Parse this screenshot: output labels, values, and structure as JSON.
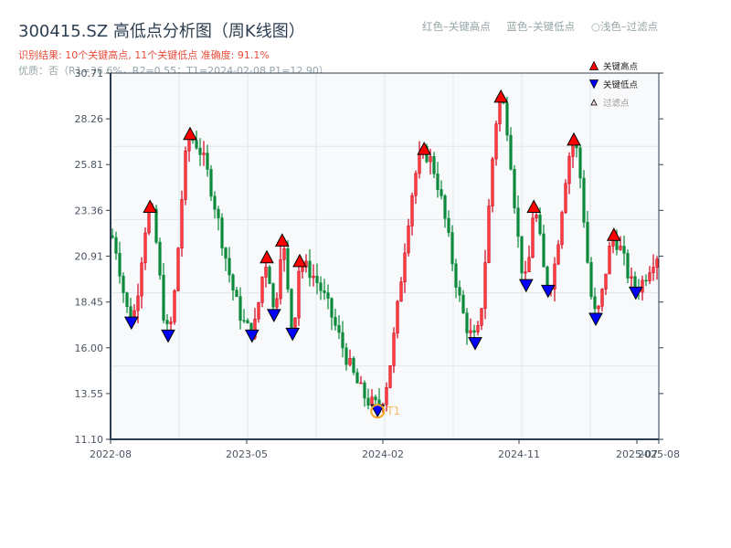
{
  "header": {
    "title": "300415.SZ 高低点分析图（周K线图）",
    "result_line": "识别结果: 10个关键高点, 11个关键低点   准确度: 91.1%",
    "quality_line": "优质：否（R1=36.6%，R2=0.55；T1=2024-02-08 P1=12.90）"
  },
  "top_legend": {
    "red_label": "红色–关键高点",
    "blue_label": "蓝色–关键低点",
    "filtered_label": "○浅色–过滤点"
  },
  "colors": {
    "up": "#d0021b",
    "down": "#0a8a3a",
    "high_marker": "#ff0000",
    "low_marker": "#0000ff",
    "t1_ring": "#f5a623",
    "axis": "#2c3e50",
    "grid": "#e2e6ea",
    "plot_bg": "#f7f9fb"
  },
  "chart_data": {
    "type": "candlestick",
    "title": "300415.SZ 高低点分析图（周K线图）",
    "xlabel": "",
    "ylabel": "",
    "ylim": [
      11.1,
      30.71
    ],
    "yticks": [
      11.1,
      13.55,
      16.0,
      18.45,
      20.91,
      23.36,
      25.81,
      28.26,
      30.71
    ],
    "ytick_labels": [
      "11.10",
      "13.55",
      "16.00",
      "18.45",
      "20.91",
      "23.36",
      "25.81",
      "28.26",
      "30.71"
    ],
    "xticks": [
      {
        "label": "2022-08",
        "pos": 0.0
      },
      {
        "label": "2023-05",
        "pos": 0.2483
      },
      {
        "label": "2024-02",
        "pos": 0.4967
      },
      {
        "label": "2024-11",
        "pos": 0.745
      },
      {
        "label": "2025-07",
        "pos": 0.96
      },
      {
        "label": "2025-08",
        "pos": 1.0
      }
    ],
    "grid": true,
    "legend": {
      "position": "upper-right",
      "entries": [
        "关键高点",
        "关键低点",
        "过滤点"
      ]
    },
    "key_highs": [
      {
        "pos": 0.072,
        "price": 23.3
      },
      {
        "pos": 0.145,
        "price": 27.2
      },
      {
        "pos": 0.285,
        "price": 20.6
      },
      {
        "pos": 0.313,
        "price": 21.5
      },
      {
        "pos": 0.345,
        "price": 20.4
      },
      {
        "pos": 0.572,
        "price": 26.4
      },
      {
        "pos": 0.712,
        "price": 29.2
      },
      {
        "pos": 0.772,
        "price": 23.3
      },
      {
        "pos": 0.845,
        "price": 26.9
      },
      {
        "pos": 0.918,
        "price": 21.8
      }
    ],
    "key_lows": [
      {
        "pos": 0.038,
        "price": 17.6
      },
      {
        "pos": 0.105,
        "price": 16.9
      },
      {
        "pos": 0.258,
        "price": 16.9
      },
      {
        "pos": 0.298,
        "price": 18.0
      },
      {
        "pos": 0.332,
        "price": 17.0
      },
      {
        "pos": 0.487,
        "price": 12.9,
        "annotation": "T1"
      },
      {
        "pos": 0.665,
        "price": 16.5
      },
      {
        "pos": 0.758,
        "price": 19.6
      },
      {
        "pos": 0.798,
        "price": 19.3
      },
      {
        "pos": 0.885,
        "price": 17.8
      },
      {
        "pos": 0.958,
        "price": 19.2
      }
    ],
    "t1": {
      "date": "2024-02-08",
      "price": 12.9,
      "label": "T1"
    },
    "summary": {
      "key_highs": 10,
      "key_lows": 11,
      "accuracy": "91.1%",
      "quality": "否",
      "R1": "36.6%",
      "R2": 0.55
    }
  }
}
